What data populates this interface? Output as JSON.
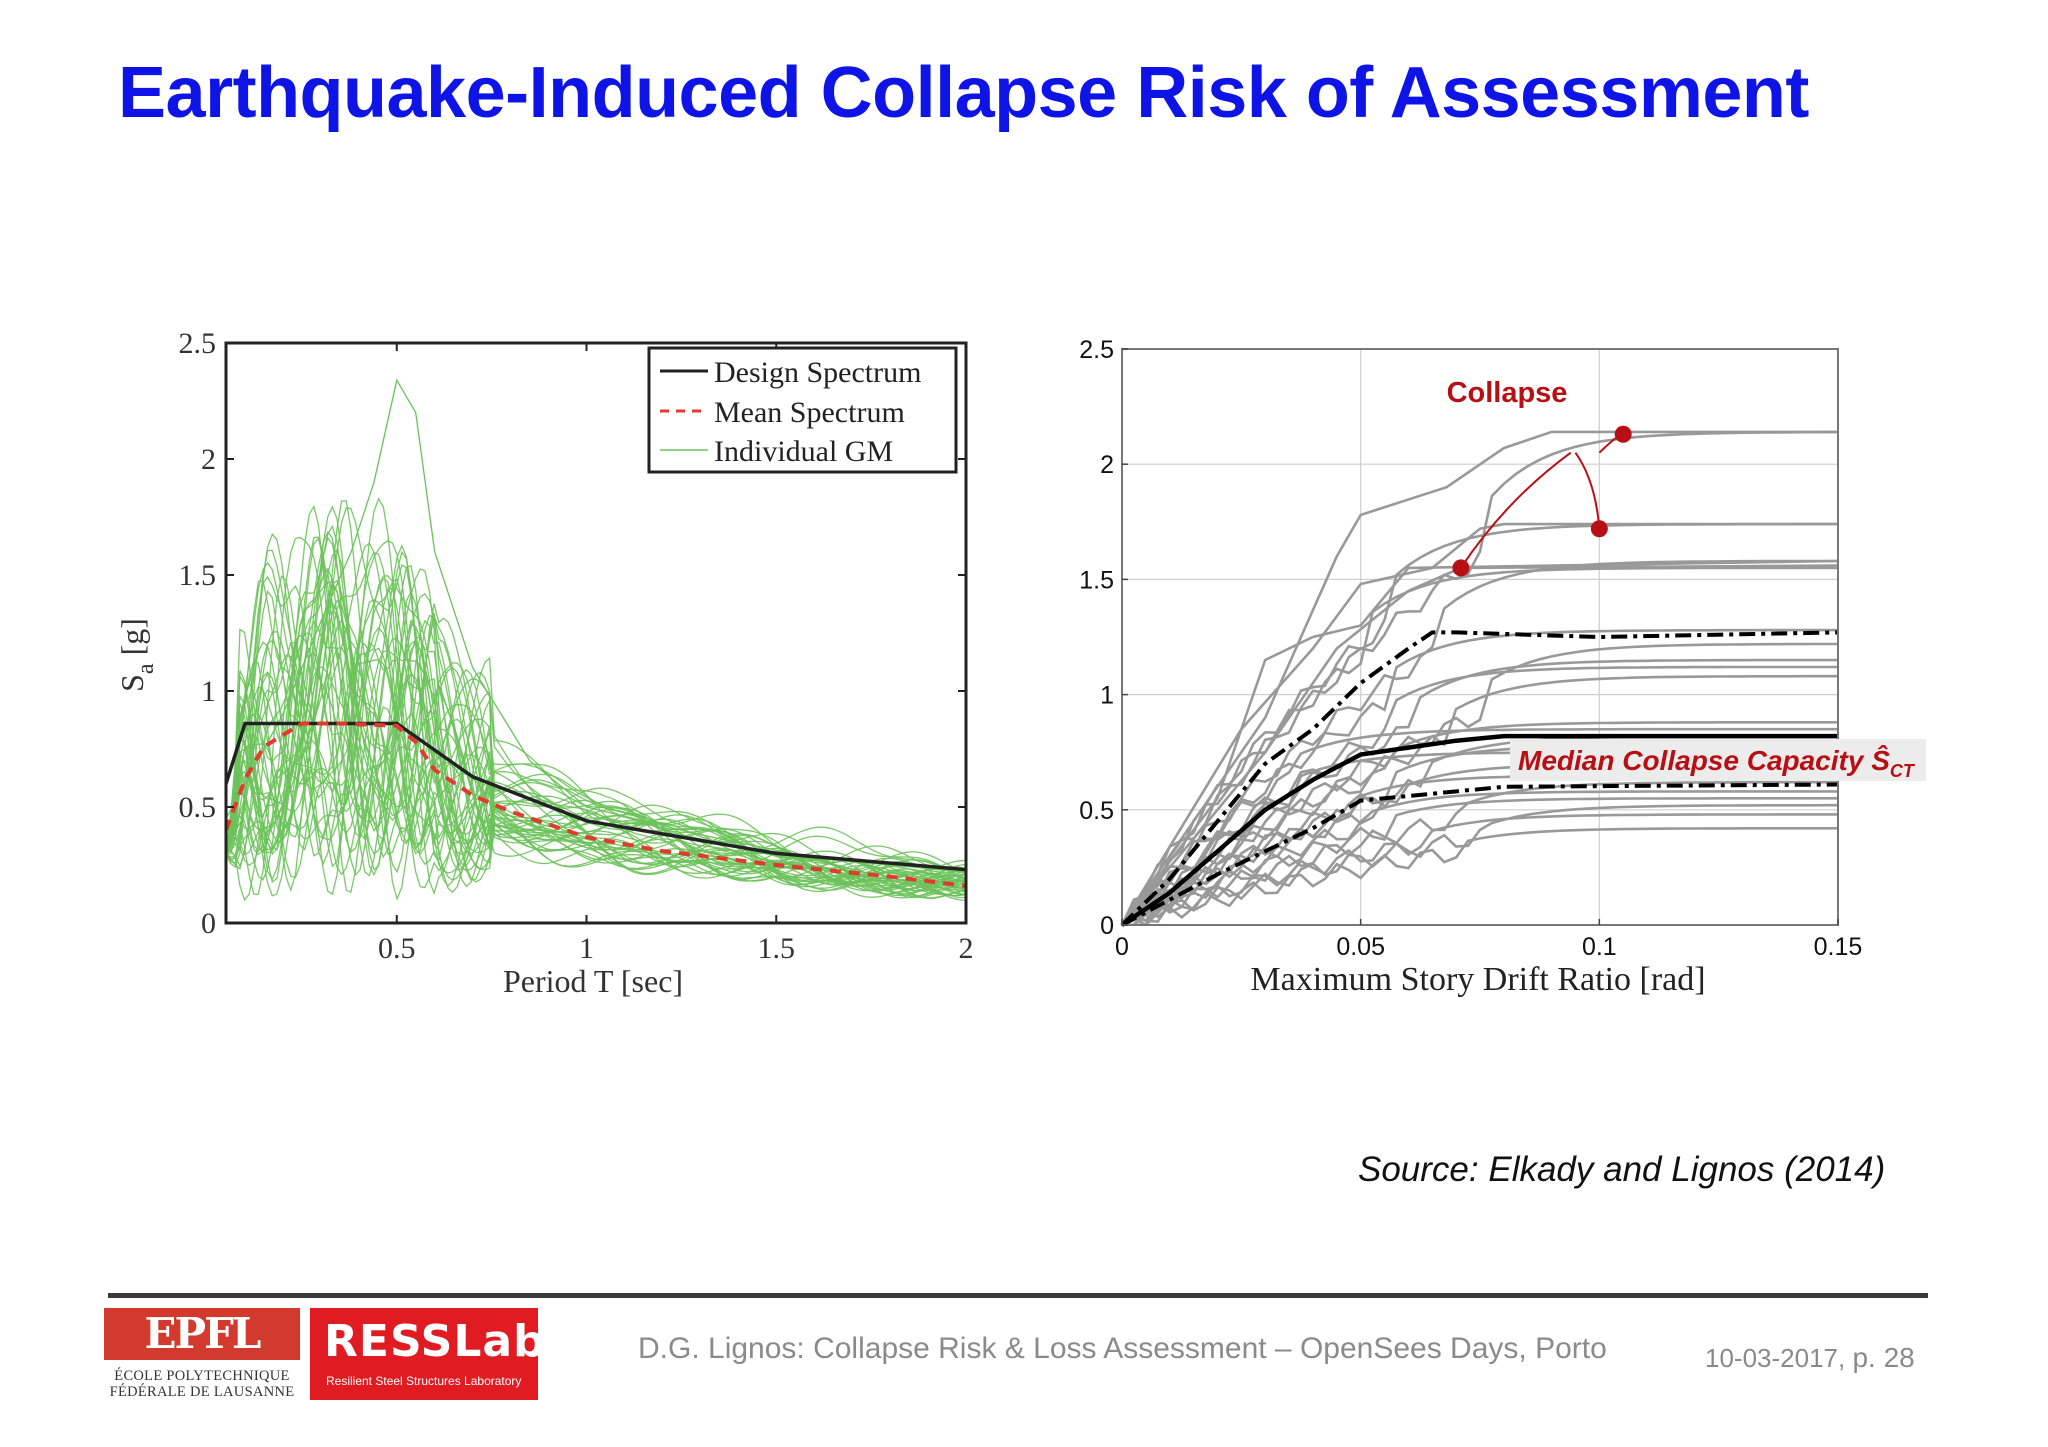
{
  "title": "Earthquake-Induced Collapse Risk of Assessment",
  "source": "Source: Elkady and Lignos (2014)",
  "footer": {
    "text": "D.G. Lignos: Collapse Risk & Loss Assessment – OpenSees Days, Porto",
    "date": "10-03-2017,",
    "page": "p. 28"
  },
  "logos": {
    "epfl_word": "EPFL",
    "epfl_line1": "ÉCOLE POLYTECHNIQUE",
    "epfl_line2": "FÉDÉRALE DE LAUSANNE",
    "ress_word": "RESSLab",
    "ress_sub": "Resilient Steel Structures Laboratory"
  },
  "colors": {
    "title": "#0f14e6",
    "gm": "#6cc25a",
    "mean": "#e23a2e",
    "design": "#222222",
    "ida": "#999999",
    "annotation": "#b80f14",
    "logo_red": "#e01b22"
  },
  "chart_data": [
    {
      "type": "line",
      "xlabel": "Period T [sec]",
      "ylabel": "S",
      "ylabel_sub": "a",
      "ylabel_unit": " [g]",
      "xlim": [
        0.05,
        2
      ],
      "ylim": [
        0,
        2.5
      ],
      "xticks": [
        0.5,
        1,
        1.5,
        2
      ],
      "xtick_labels": [
        "0.5",
        "1",
        "1.5",
        "2"
      ],
      "yticks": [
        0,
        0.5,
        1,
        1.5,
        2,
        2.5
      ],
      "ytick_labels": [
        "0",
        "0.5",
        "1",
        "1.5",
        "2",
        "2.5"
      ],
      "legend_position": "top-right",
      "legend": [
        "Design Spectrum",
        "Mean Spectrum",
        "Individual GM"
      ],
      "series": [
        {
          "name": "Design Spectrum",
          "style": "solid-black",
          "x": [
            0.05,
            0.1,
            0.3,
            0.5,
            0.7,
            1.0,
            1.5,
            2.0
          ],
          "y": [
            0.6,
            0.86,
            0.86,
            0.86,
            0.63,
            0.44,
            0.3,
            0.23
          ]
        },
        {
          "name": "Mean Spectrum",
          "style": "dashed-red",
          "x": [
            0.05,
            0.1,
            0.15,
            0.25,
            0.35,
            0.5,
            0.55,
            0.6,
            0.7,
            0.8,
            1.0,
            1.2,
            1.5,
            1.8,
            2.0
          ],
          "y": [
            0.4,
            0.62,
            0.76,
            0.86,
            0.86,
            0.85,
            0.78,
            0.66,
            0.55,
            0.48,
            0.37,
            0.31,
            0.25,
            0.2,
            0.16
          ]
        },
        {
          "name": "Individual GM",
          "style": "thin-green",
          "count": 44,
          "peak_max": 2.34,
          "peak_period_max": 0.5,
          "note_values": "individual records spread around mean spectrum, 0.1 to 2.34 g"
        }
      ]
    },
    {
      "type": "line",
      "xlabel": "Maximum Story Drift Ratio [rad]",
      "ylabel": "",
      "xlim": [
        0,
        0.15
      ],
      "ylim": [
        0,
        2.5
      ],
      "xticks": [
        0,
        0.05,
        0.1,
        0.15
      ],
      "xtick_labels": [
        "0",
        "0.05",
        "0.1",
        "0.15"
      ],
      "yticks": [
        0,
        0.5,
        1,
        1.5,
        2,
        2.5
      ],
      "ytick_labels": [
        "0",
        "0.5",
        "1",
        "1.5",
        "2",
        "2.5"
      ],
      "grid": true,
      "annotations": {
        "collapse": "Collapse",
        "median": "Median Collapse Capacity Ŝ",
        "median_sub": "CT"
      },
      "collapse_points": [
        {
          "x": 0.071,
          "y": 1.55
        },
        {
          "x": 0.1,
          "y": 1.72
        },
        {
          "x": 0.105,
          "y": 2.13
        }
      ],
      "series": [
        {
          "name": "Median",
          "style": "solid-black-thick",
          "x": [
            0,
            0.01,
            0.02,
            0.03,
            0.04,
            0.05,
            0.06,
            0.07,
            0.08,
            0.15
          ],
          "y": [
            0,
            0.14,
            0.32,
            0.5,
            0.63,
            0.74,
            0.77,
            0.8,
            0.82,
            0.82
          ]
        },
        {
          "name": "84th",
          "style": "dashdot-black",
          "x": [
            0,
            0.01,
            0.02,
            0.03,
            0.04,
            0.05,
            0.06,
            0.065,
            0.07,
            0.1,
            0.15
          ],
          "y": [
            0,
            0.2,
            0.45,
            0.7,
            0.85,
            1.05,
            1.2,
            1.27,
            1.27,
            1.25,
            1.27
          ]
        },
        {
          "name": "16th",
          "style": "dashdot-black",
          "x": [
            0,
            0.02,
            0.04,
            0.05,
            0.06,
            0.08,
            0.15
          ],
          "y": [
            0,
            0.22,
            0.42,
            0.54,
            0.56,
            0.6,
            0.61
          ]
        },
        {
          "name": "IDA curves",
          "style": "thin-gray",
          "count": 36,
          "plateaus": [
            2.14,
            1.74,
            1.58,
            1.55,
            1.28,
            1.22,
            1.15,
            1.12,
            1.08,
            0.88,
            0.85,
            0.82,
            0.78,
            0.75,
            0.7,
            0.65,
            0.62,
            0.58,
            0.55,
            0.52,
            0.48,
            0.42
          ]
        }
      ]
    }
  ]
}
